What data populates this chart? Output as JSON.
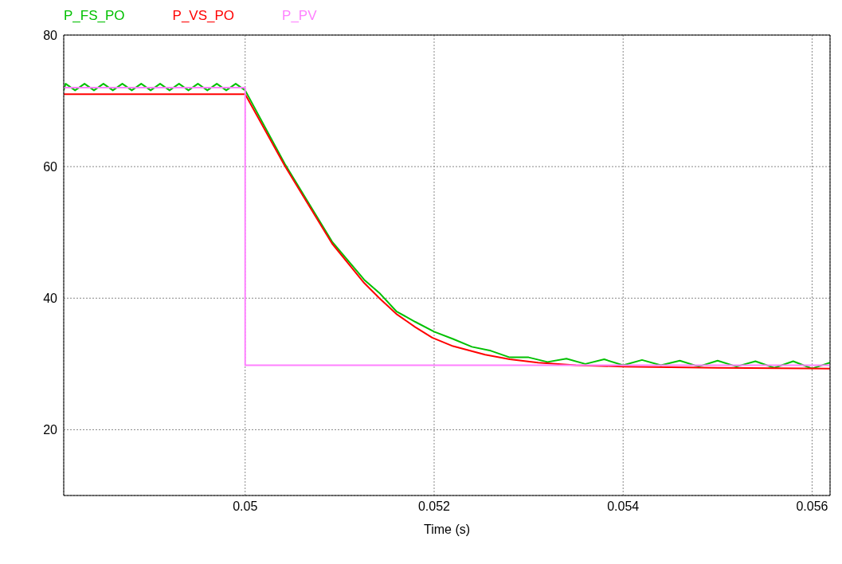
{
  "chart_data": {
    "type": "line",
    "xlabel": "Time (s)",
    "xlim": [
      0.04808,
      0.05619
    ],
    "xticks": [
      0.05,
      0.052,
      0.054,
      0.056
    ],
    "ylim": [
      10,
      80
    ],
    "yticks": [
      20,
      40,
      60,
      80
    ],
    "grid": true,
    "legend": "top left",
    "series": [
      {
        "name": "P_FS_PO",
        "color": "#00c000",
        "x": [
          0.04808,
          0.0481,
          0.0482,
          0.0483,
          0.0484,
          0.0485,
          0.0486,
          0.0487,
          0.0488,
          0.0489,
          0.049,
          0.0491,
          0.0492,
          0.0493,
          0.0494,
          0.0495,
          0.0496,
          0.0497,
          0.0498,
          0.0499,
          0.05,
          0.05042,
          0.05092,
          0.05126,
          0.05142,
          0.0516,
          0.0518,
          0.052,
          0.0522,
          0.0524,
          0.0526,
          0.0528,
          0.053,
          0.0532,
          0.0534,
          0.0536,
          0.0538,
          0.054,
          0.0542,
          0.0544,
          0.0546,
          0.0548,
          0.055,
          0.0552,
          0.0554,
          0.0556,
          0.0558,
          0.056,
          0.05619
        ],
        "values": [
          71.6,
          72.6,
          71.6,
          72.6,
          71.6,
          72.6,
          71.6,
          72.6,
          71.6,
          72.6,
          71.6,
          72.6,
          71.6,
          72.6,
          71.6,
          72.6,
          71.6,
          72.6,
          71.6,
          72.6,
          71.6,
          60.4,
          48.6,
          42.8,
          40.8,
          38.0,
          36.4,
          34.9,
          33.8,
          32.6,
          32.0,
          31.0,
          31.0,
          30.3,
          30.8,
          30.0,
          30.7,
          29.8,
          30.6,
          29.8,
          30.5,
          29.6,
          30.5,
          29.6,
          30.4,
          29.4,
          30.4,
          29.3,
          30.2
        ]
      },
      {
        "name": "P_VS_PO",
        "color": "#ff0000",
        "x": [
          0.04808,
          0.05,
          0.05042,
          0.05092,
          0.05126,
          0.05142,
          0.0516,
          0.0518,
          0.05198,
          0.0522,
          0.05254,
          0.0528,
          0.0531,
          0.0535,
          0.054,
          0.055,
          0.05619
        ],
        "values": [
          71.0,
          71.0,
          60.1,
          48.3,
          42.3,
          40.0,
          37.6,
          35.6,
          34.0,
          32.7,
          31.4,
          30.7,
          30.2,
          29.8,
          29.6,
          29.4,
          29.3
        ]
      },
      {
        "name": "P_PV",
        "color": "#ff80ff",
        "x": [
          0.04808,
          0.05,
          0.05,
          0.05619
        ],
        "values": [
          72.0,
          72.0,
          29.8,
          29.8
        ]
      }
    ]
  }
}
